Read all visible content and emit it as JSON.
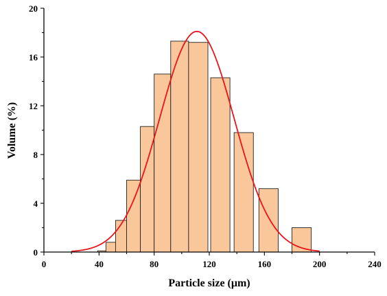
{
  "chart_data": {
    "type": "bar",
    "subtype": "histogram-with-gaussian-fit",
    "xlabel": "Particle size (μm)",
    "ylabel": "Volume (%)",
    "xlim": [
      0,
      240
    ],
    "ylim": [
      0,
      20
    ],
    "xticks": [
      0,
      40,
      80,
      120,
      160,
      200,
      240
    ],
    "yticks": [
      0,
      4,
      8,
      12,
      16,
      20
    ],
    "bar_color": "#F9C79A",
    "bar_edge_color": "#222222",
    "curve_color": "#E8141A",
    "bins": [
      {
        "x0": 39,
        "x1": 45,
        "value": 0.1
      },
      {
        "x0": 45,
        "x1": 52,
        "value": 0.8
      },
      {
        "x0": 52,
        "x1": 60,
        "value": 2.6
      },
      {
        "x0": 60,
        "x1": 70,
        "value": 5.9
      },
      {
        "x0": 70,
        "x1": 80,
        "value": 10.3
      },
      {
        "x0": 80,
        "x1": 92,
        "value": 14.6
      },
      {
        "x0": 92,
        "x1": 105,
        "value": 17.3
      },
      {
        "x0": 105,
        "x1": 119,
        "value": 17.2
      },
      {
        "x0": 121,
        "x1": 135,
        "value": 14.3
      },
      {
        "x0": 138,
        "x1": 152,
        "value": 9.8
      },
      {
        "x0": 156,
        "x1": 170,
        "value": 5.2
      },
      {
        "x0": 180,
        "x1": 194,
        "value": 2.0
      }
    ],
    "gaussian_fit": {
      "mean": 111,
      "sigma": 27,
      "peak": 18.1,
      "x_start": 20,
      "x_end": 200
    }
  }
}
